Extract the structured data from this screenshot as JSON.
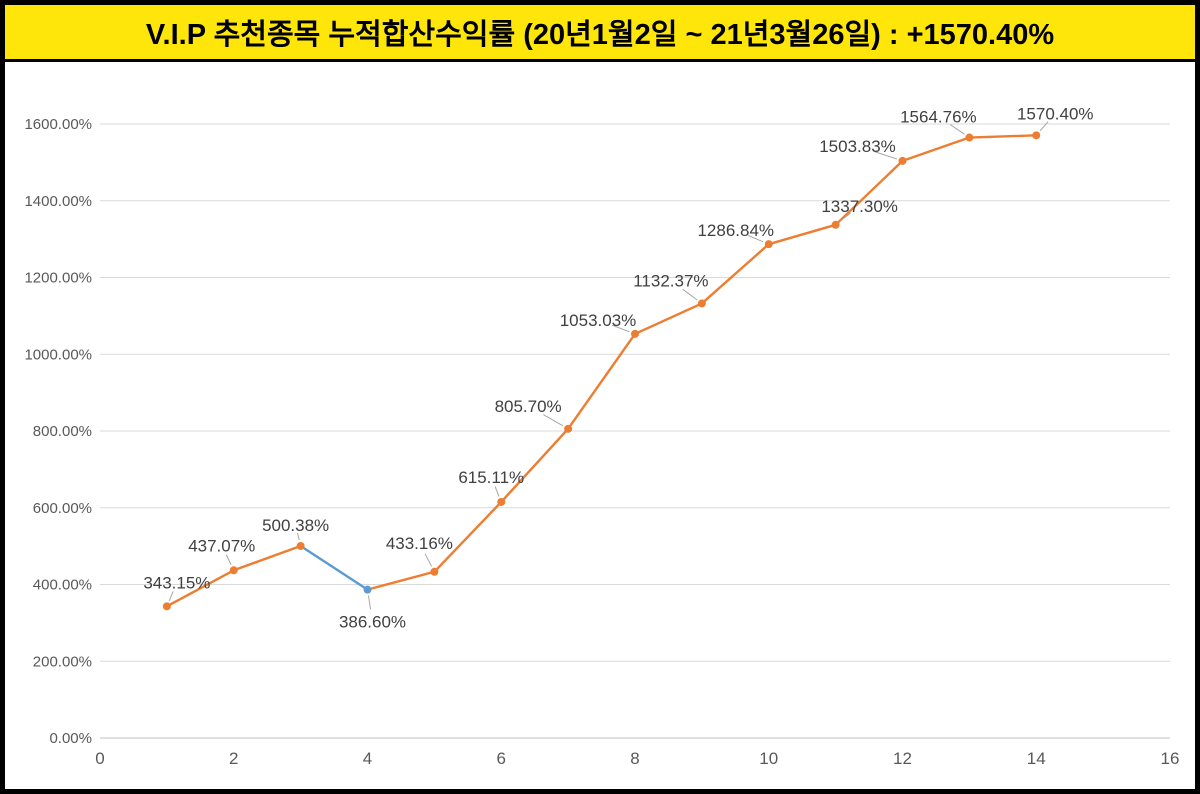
{
  "banner": {
    "title": "V.I.P 추천종목 누적합산수익률 (20년1월2일 ~ 21년3월26일) : +1570.40%",
    "background": "#FFE60A",
    "text_color": "#000000"
  },
  "chart_data": {
    "type": "line",
    "title": "V.I.P 추천종목 누적합산수익률 (20년1월2일 ~ 21년3월26일) : +1570.40%",
    "x": [
      1,
      2,
      3,
      4,
      5,
      6,
      7,
      8,
      9,
      10,
      11,
      12,
      13,
      14
    ],
    "values": [
      343.15,
      437.07,
      500.38,
      386.6,
      433.16,
      615.11,
      805.7,
      1053.03,
      1132.37,
      1286.84,
      1337.3,
      1503.83,
      1564.76,
      1570.4
    ],
    "point_labels": [
      "343.15%",
      "437.07%",
      "500.38%",
      "386.60%",
      "433.16%",
      "615.11%",
      "805.70%",
      "1053.03%",
      "1132.37%",
      "1286.84%",
      "1337.30%",
      "1503.83%",
      "1564.76%",
      "1570.40%"
    ],
    "xlabel": "",
    "ylabel": "",
    "xlim": [
      0,
      16
    ],
    "ylim": [
      0,
      1600
    ],
    "x_tick_values": [
      0,
      2,
      4,
      6,
      8,
      10,
      12,
      14,
      16
    ],
    "x_tick_labels": [
      "0",
      "2",
      "4",
      "6",
      "8",
      "10",
      "12",
      "14",
      "16"
    ],
    "y_tick_values": [
      0,
      200,
      400,
      600,
      800,
      1000,
      1200,
      1400,
      1600
    ],
    "y_tick_labels": [
      "0.00%",
      "200.00%",
      "400.00%",
      "600.00%",
      "800.00%",
      "1000.00%",
      "1200.00%",
      "1400.00%",
      "1600.00%"
    ],
    "grid": true,
    "legend": "none",
    "series_color": "#ED7D31",
    "decline_segment_color": "#5B9BD5",
    "decline_segment_x": [
      3,
      4
    ],
    "blue_point_x": 4,
    "gridline_color": "#D9D9D9",
    "axis_line_color": "#BFBFBF",
    "tick_label_color": "#595959",
    "data_label_color": "#404040",
    "leader_line_color": "#A6A6A6"
  }
}
